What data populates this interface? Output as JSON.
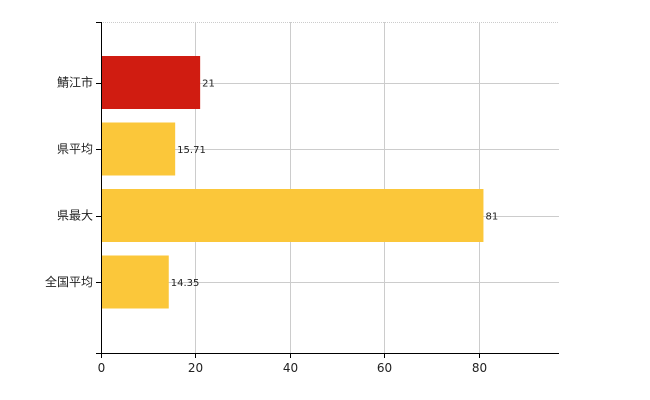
{
  "chart_data": {
    "type": "bar",
    "orientation": "horizontal",
    "categories": [
      "鯖江市",
      "県平均",
      "県最大",
      "全国平均"
    ],
    "values": [
      21,
      15.71,
      81,
      14.35
    ],
    "value_labels": [
      "21",
      "15.71",
      "81",
      "14.35"
    ],
    "bar_colors": [
      "#d01c11",
      "#fbc73a",
      "#fbc73a",
      "#fbc73a"
    ],
    "title": "",
    "xlabel": "",
    "ylabel": "",
    "xlim": [
      0,
      97
    ],
    "x_ticks": [
      0,
      20,
      40,
      60,
      80
    ],
    "x_tick_labels": [
      "0",
      "20",
      "40",
      "60",
      "80"
    ],
    "grid": true,
    "legend": "none"
  },
  "colors": {
    "axis": "#000000",
    "grid": "#cccccc",
    "highlight": "#d01c11",
    "default_bar": "#fbc73a"
  }
}
